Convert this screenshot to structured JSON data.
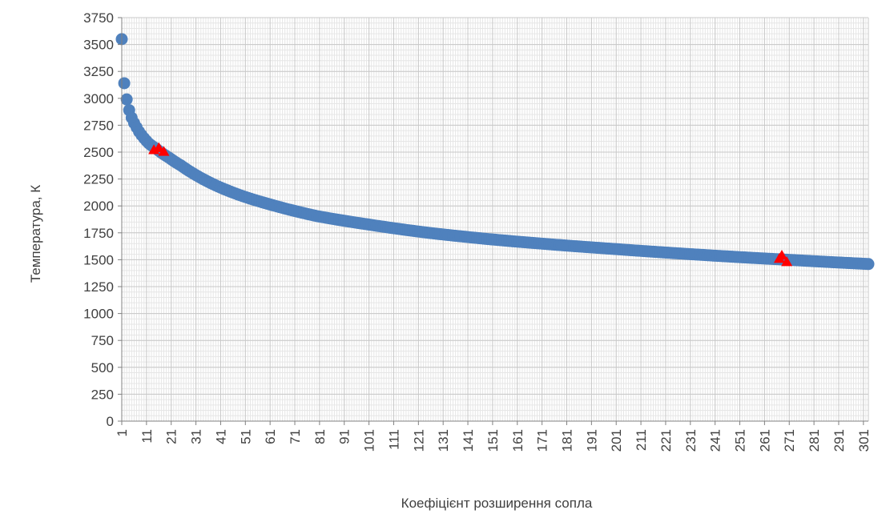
{
  "chart_data": {
    "type": "scatter",
    "title": "",
    "xlabel": "Коефіцієнт розширення сопла",
    "ylabel": "Температура, К",
    "xlim": [
      1,
      303
    ],
    "ylim": [
      0,
      3750
    ],
    "x_ticks": [
      "1",
      "11",
      "21",
      "31",
      "41",
      "51",
      "61",
      "71",
      "81",
      "91",
      "101",
      "111",
      "121",
      "131",
      "141",
      "151",
      "161",
      "171",
      "181",
      "191",
      "201",
      "211",
      "221",
      "231",
      "241",
      "251",
      "261",
      "271",
      "281",
      "291",
      "301"
    ],
    "y_ticks": [
      "0",
      "250",
      "500",
      "750",
      "1000",
      "1250",
      "1500",
      "1750",
      "2000",
      "2250",
      "2500",
      "2750",
      "3000",
      "3250",
      "3500",
      "3750"
    ],
    "grid": true,
    "series": [
      {
        "marker": "circle",
        "color": "#4f81bd",
        "x_start": 1,
        "x_end": 303,
        "x_step": 1,
        "curve": {
          "x": [
            1,
            2,
            3,
            4,
            5,
            6,
            7,
            8,
            10,
            12,
            15,
            20,
            25,
            30,
            40,
            50,
            60,
            80,
            100,
            125,
            150,
            200,
            250,
            270,
            303
          ],
          "y": [
            3550,
            3140,
            2990,
            2890,
            2820,
            2770,
            2730,
            2690,
            2630,
            2580,
            2530,
            2450,
            2375,
            2300,
            2180,
            2090,
            2020,
            1905,
            1830,
            1750,
            1690,
            1600,
            1525,
            1500,
            1460
          ]
        }
      },
      {
        "marker": "triangle",
        "color": "#ff0000",
        "points": [
          {
            "x": 14,
            "y": 2520
          },
          {
            "x": 16,
            "y": 2540
          },
          {
            "x": 18,
            "y": 2505
          },
          {
            "x": 267,
            "y": 1510
          },
          {
            "x": 268,
            "y": 1540
          },
          {
            "x": 270,
            "y": 1480
          }
        ]
      }
    ]
  }
}
